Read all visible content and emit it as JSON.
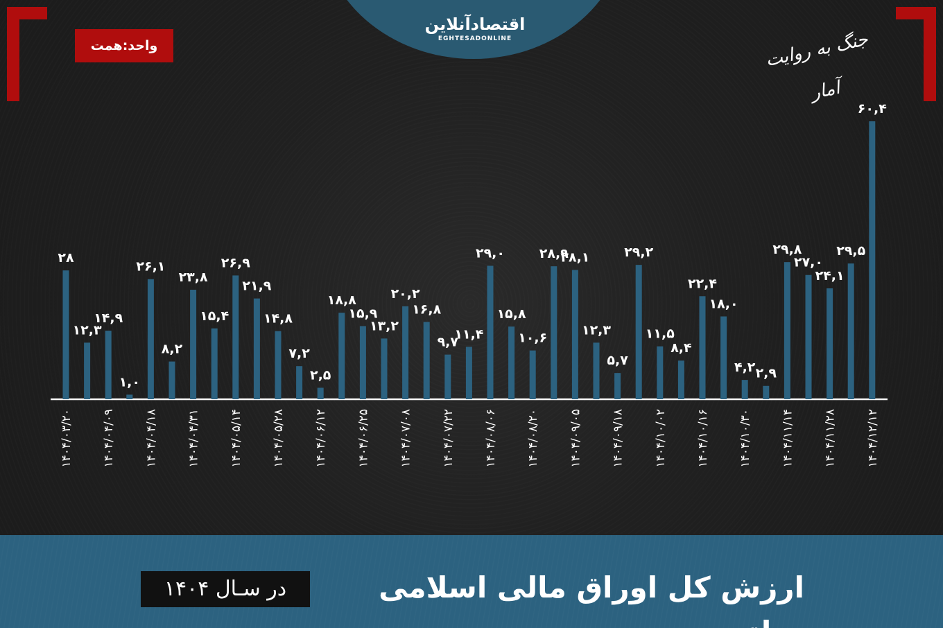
{
  "header": {
    "logo_main": "اقتصادآنلاین",
    "logo_sub": "EGHTESADONLINE",
    "unit_label": "واحد:همت",
    "brand_script": "جنگ به روایت آمار"
  },
  "footer": {
    "title": "ارزش کل اوراق مالی اسلامی دولتی",
    "year_label": "در سـال ۱۴۰۴"
  },
  "colors": {
    "bar": "#2c6280",
    "accent_red": "#b00d0d",
    "text": "#ffffff",
    "background": "#1f1f1f"
  },
  "chart_data": {
    "type": "bar",
    "title": "ارزش کل اوراق مالی اسلامی دولتی",
    "unit": "همت",
    "grid": false,
    "ylim": [
      0,
      60.4
    ],
    "categories": [
      "۱۴۰۴/۰۳/۲۰",
      "",
      "۱۴۰۴/۰۴/۰۹",
      "",
      "۱۴۰۴/۰۴/۱۸",
      "",
      "۱۴۰۴/۰۴/۳۱",
      "",
      "۱۴۰۴/۰۵/۱۴",
      "",
      "۱۴۰۴/۰۵/۲۸",
      "",
      "۱۴۰۴/۰۶/۱۲",
      "",
      "۱۴۰۴/۰۶/۲۵",
      "",
      "۱۴۰۴/۰۷/۰۸",
      "",
      "۱۴۰۴/۰۷/۲۲",
      "",
      "۱۴۰۴/۰۸/۰۶",
      "",
      "۱۴۰۴/۰۸/۲۰",
      "",
      "۱۴۰۴/۰۹/۰۵",
      "",
      "۱۴۰۴/۰۹/۱۸",
      "",
      "۱۴۰۴/۱۰/۰۲",
      "",
      "۱۴۰۴/۱۰/۱۶",
      "",
      "۱۴۰۴/۱۰/۳۰",
      "",
      "۱۴۰۴/۱۱/۱۴",
      "",
      "۱۴۰۴/۱۱/۲۸",
      "",
      "۱۴۰۴/۱۲/۱۲"
    ],
    "values": [
      28,
      12.3,
      14.9,
      1.0,
      26.1,
      8.2,
      23.8,
      15.4,
      26.9,
      21.9,
      14.8,
      7.2,
      2.5,
      18.8,
      15.9,
      13.2,
      20.2,
      16.8,
      9.7,
      11.4,
      29.0,
      15.8,
      10.6,
      28.9,
      28.1,
      12.3,
      5.7,
      29.2,
      11.5,
      8.4,
      22.4,
      18.0,
      4.2,
      2.9,
      29.8,
      27.0,
      24.1,
      29.5,
      60.4
    ],
    "value_labels": [
      "۲۸",
      "۱۲,۳",
      "۱۴,۹",
      "۱,۰",
      "۲۶,۱",
      "۸,۲",
      "۲۳,۸",
      "۱۵,۴",
      "۲۶,۹",
      "۲۱,۹",
      "۱۴,۸",
      "۷,۲",
      "۲,۵",
      "۱۸,۸",
      "۱۵,۹",
      "۱۳,۲",
      "۲۰,۲",
      "۱۶,۸",
      "۹,۷",
      "۱۱,۴",
      "۲۹,۰",
      "۱۵,۸",
      "۱۰,۶",
      "۲۸,۹",
      "۲۸,۱",
      "۱۲,۳",
      "۵,۷",
      "۲۹,۲",
      "۱۱,۵",
      "۸,۴",
      "۲۲,۴",
      "۱۸,۰",
      "۴,۲",
      "۲,۹",
      "۲۹,۸",
      "۲۷,۰",
      "۲۴,۱",
      "۲۹,۵",
      "۶۰,۴"
    ]
  }
}
